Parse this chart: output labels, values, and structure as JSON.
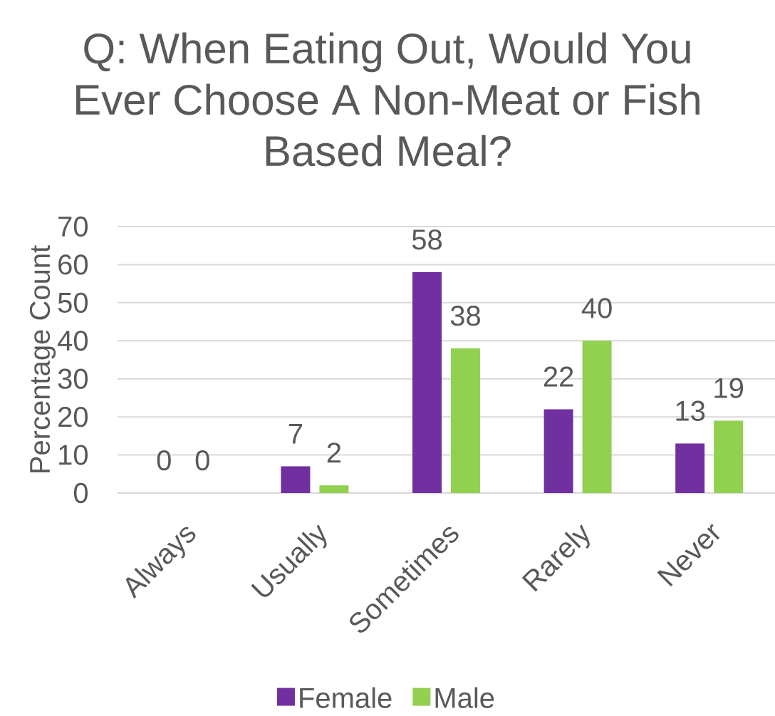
{
  "chart_data": {
    "type": "bar",
    "title": "Q: When Eating Out, Would You Ever Choose A Non-Meat or Fish Based Meal?",
    "ylabel": "Percentage Count",
    "categories": [
      "Always",
      "Usually",
      "Sometimes",
      "Rarely",
      "Never"
    ],
    "series": [
      {
        "name": "Female",
        "color": "#7030a0",
        "values": [
          0,
          7,
          58,
          22,
          13
        ]
      },
      {
        "name": "Male",
        "color": "#92d050",
        "values": [
          0,
          2,
          38,
          40,
          19
        ]
      }
    ],
    "ylim": [
      0,
      70
    ],
    "yticks": [
      0,
      10,
      20,
      30,
      40,
      50,
      60,
      70
    ],
    "grid": "y",
    "data_labels": true,
    "legend": "bottom"
  }
}
